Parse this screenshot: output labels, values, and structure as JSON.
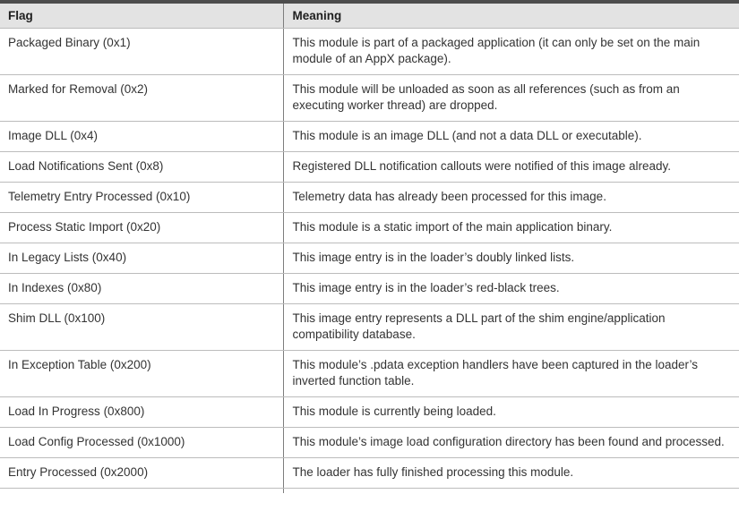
{
  "table": {
    "columns": [
      {
        "label": "Flag"
      },
      {
        "label": "Meaning"
      }
    ],
    "rows": [
      {
        "flag": "Packaged Binary (0x1)",
        "meaning": "This module is part of a packaged application (it can only be set on the main module of an AppX package)."
      },
      {
        "flag": "Marked for Removal (0x2)",
        "meaning": "This module will be unloaded as soon as all references (such as from an executing worker thread) are dropped."
      },
      {
        "flag": "Image DLL (0x4)",
        "meaning": "This module is an image DLL (and not a data DLL or executable)."
      },
      {
        "flag": "Load Notifications Sent (0x8)",
        "meaning": "Registered DLL notification callouts were notified of this image already."
      },
      {
        "flag": "Telemetry Entry Processed (0x10)",
        "meaning": "Telemetry data has already been processed for this image."
      },
      {
        "flag": "Process Static Import (0x20)",
        "meaning": "This module is a static import of the main application binary."
      },
      {
        "flag": "In Legacy Lists (0x40)",
        "meaning": "This image entry is in the loader’s doubly linked lists."
      },
      {
        "flag": "In Indexes (0x80)",
        "meaning": "This image entry is in the loader’s red-black trees."
      },
      {
        "flag": "Shim DLL (0x100)",
        "meaning": "This image entry represents a DLL part of the shim engine/application compatibility database."
      },
      {
        "flag": "In Exception Table (0x200)",
        "meaning": "This module’s .pdata exception handlers have been captured in the loader’s inverted function table."
      },
      {
        "flag": "Load In Progress (0x800)",
        "meaning": "This module is currently being loaded."
      },
      {
        "flag": "Load Config Processed (0x1000)",
        "meaning": "This module’s image load configuration directory has been found and processed."
      },
      {
        "flag": "Entry Processed (0x2000)",
        "meaning": "The loader has fully finished processing this module."
      }
    ]
  },
  "colors": {
    "top_border": "#4d4d4d",
    "header_bg": "#e3e3e3",
    "row_border": "#bcbcbc",
    "divider": "#7d7d7d",
    "text": "#333333",
    "header_text": "#1f1f1f"
  }
}
